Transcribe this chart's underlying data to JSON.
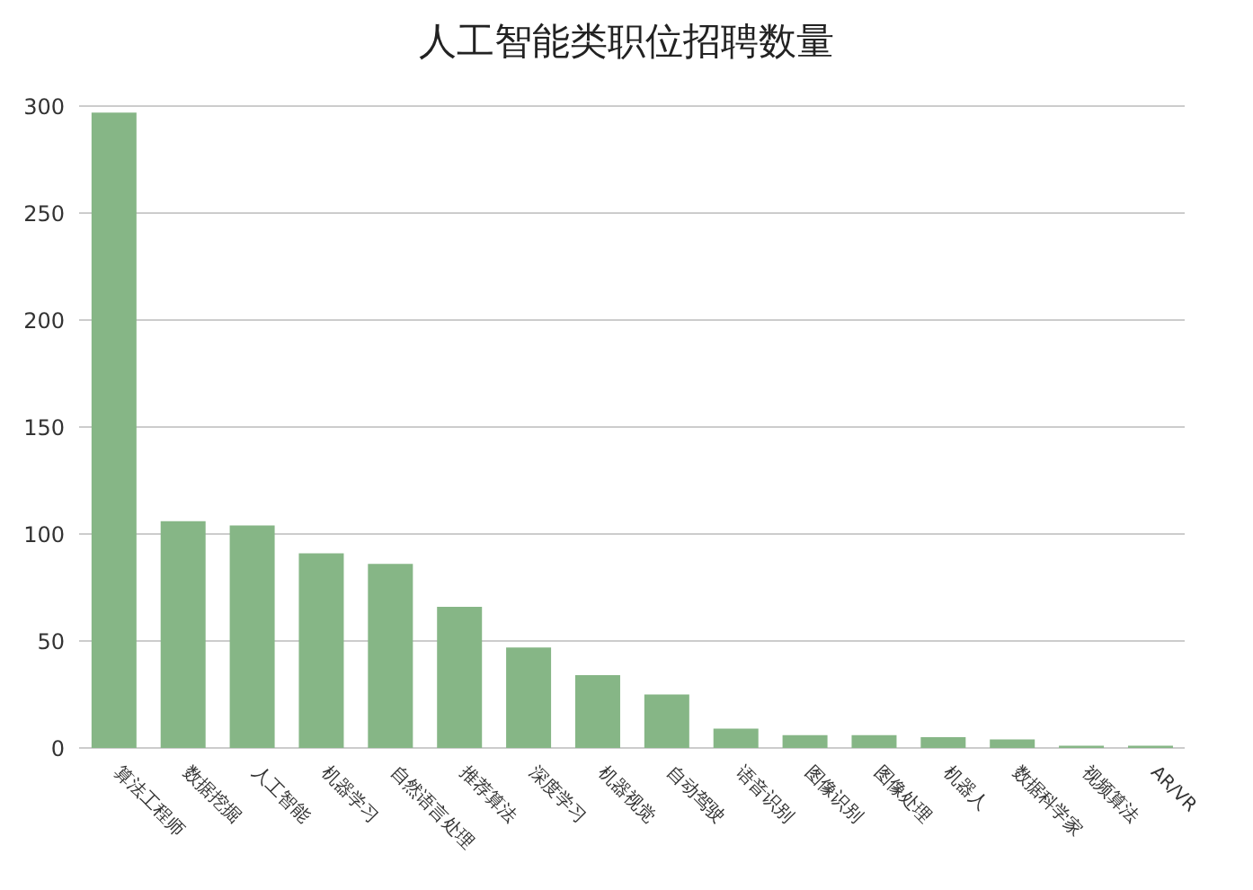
{
  "chart_data": {
    "type": "bar",
    "title": "人工智能类职位招聘数量",
    "categories": [
      "算法工程师",
      "数据挖掘",
      "人工智能",
      "机器学习",
      "自然语言处理",
      "推荐算法",
      "深度学习",
      "机器视觉",
      "自动驾驶",
      "语音识别",
      "图像识别",
      "图像处理",
      "机器人",
      "数据科学家",
      "视频算法",
      "AR/VR"
    ],
    "values": [
      297,
      106,
      104,
      91,
      86,
      66,
      47,
      34,
      25,
      9,
      6,
      6,
      5,
      4,
      1,
      1
    ],
    "color": "#86b686",
    "ylim": [
      0,
      300
    ],
    "yticks": [
      0,
      50,
      100,
      150,
      200,
      250,
      300
    ],
    "grid": "y"
  }
}
